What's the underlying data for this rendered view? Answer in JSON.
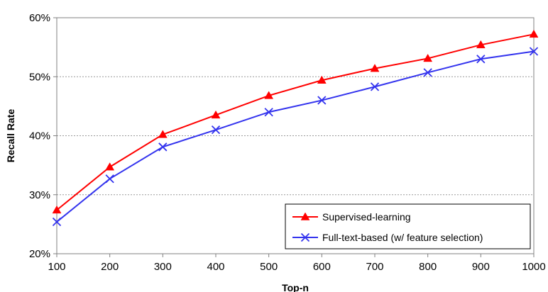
{
  "chart_data": {
    "type": "line",
    "xlabel": "Top-n",
    "ylabel": "Recall Rate",
    "x": [
      100,
      200,
      300,
      400,
      500,
      600,
      700,
      800,
      900,
      1000
    ],
    "x_tick_labels": [
      "100",
      "200",
      "300",
      "400",
      "500",
      "600",
      "700",
      "800",
      "900",
      "1000"
    ],
    "ylim": [
      0.2,
      0.6
    ],
    "y_ticks": [
      0.2,
      0.3,
      0.4,
      0.5,
      0.6
    ],
    "y_tick_labels": [
      "20%",
      "30%",
      "40%",
      "50%",
      "60%"
    ],
    "grid": "horizontal",
    "legend_position": "bottom-right",
    "series": [
      {
        "name": "Supervised-learning",
        "color": "#ff0000",
        "marker": "triangle",
        "values": [
          0.274,
          0.347,
          0.402,
          0.435,
          0.468,
          0.494,
          0.514,
          0.531,
          0.554,
          0.572
        ]
      },
      {
        "name": "Full-text-based (w/ feature selection)",
        "color": "#3333ee",
        "marker": "x",
        "values": [
          0.254,
          0.327,
          0.381,
          0.41,
          0.44,
          0.46,
          0.483,
          0.507,
          0.53,
          0.543
        ]
      }
    ]
  }
}
